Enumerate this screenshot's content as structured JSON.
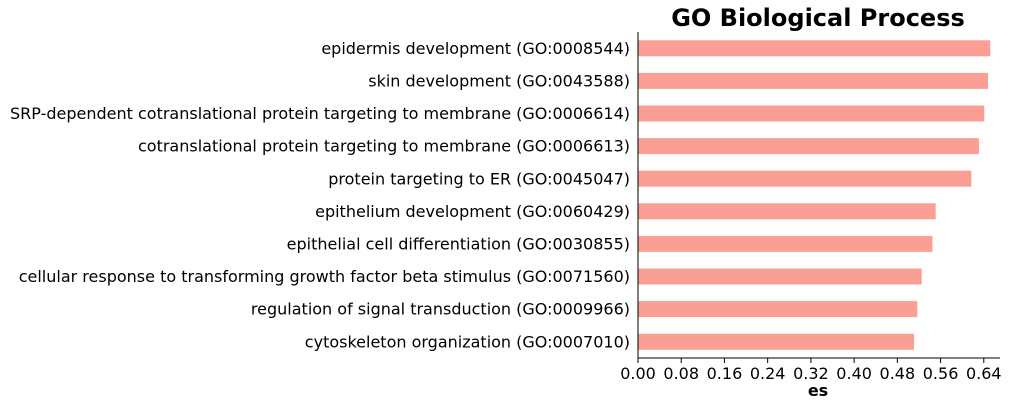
{
  "chart_data": {
    "type": "bar",
    "orientation": "horizontal",
    "title": "GO Biological Process",
    "xlabel": "es",
    "ylabel": "",
    "xlim": [
      0,
      0.67
    ],
    "xticks": [
      "0.00",
      "0.08",
      "0.16",
      "0.24",
      "0.32",
      "0.40",
      "0.48",
      "0.56",
      "0.64"
    ],
    "grid": false,
    "bar_color": "#fb9f94",
    "categories": [
      "epidermis development (GO:0008544)",
      "skin development (GO:0043588)",
      "SRP-dependent cotranslational protein targeting to membrane (GO:0006614)",
      "cotranslational protein targeting to membrane (GO:0006613)",
      "protein targeting to ER (GO:0045047)",
      "epithelium development (GO:0060429)",
      "epithelial cell differentiation (GO:0030855)",
      "cellular response to transforming growth factor beta stimulus (GO:0071560)",
      "regulation of signal transduction (GO:0009966)",
      "cytoskeleton organization (GO:0007010)"
    ],
    "values": [
      0.652,
      0.648,
      0.641,
      0.631,
      0.617,
      0.551,
      0.545,
      0.525,
      0.517,
      0.511
    ]
  }
}
